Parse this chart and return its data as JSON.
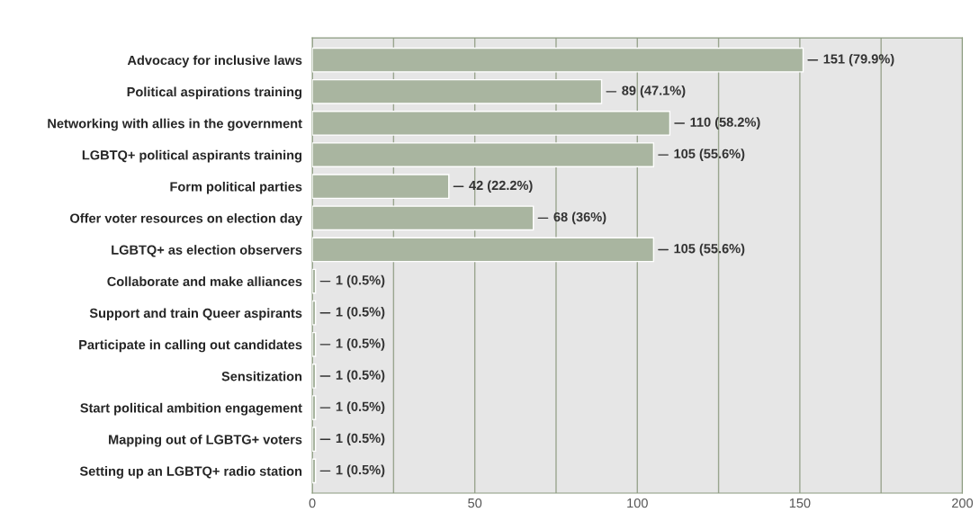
{
  "chart_data": {
    "type": "bar",
    "orientation": "horizontal",
    "categories": [
      "Advocacy for inclusive laws",
      "Political aspirations training",
      "Networking with allies in the government",
      "LGBTQ+ political aspirants training",
      "Form political parties",
      "Offer voter resources on election day",
      "LGBTQ+ as election observers",
      "Collaborate and make alliances",
      "Support and train Queer aspirants",
      "Participate in calling out candidates",
      "Sensitization",
      "Start political ambition engagement",
      "Mapping out of LGBTG+ voters",
      "Setting up an LGBTQ+ radio station"
    ],
    "values": [
      151,
      89,
      110,
      105,
      42,
      68,
      105,
      1,
      1,
      1,
      1,
      1,
      1,
      1
    ],
    "value_labels": [
      "151 (79.9%)",
      "89 (47.1%)",
      "110 (58.2%)",
      "105 (55.6%)",
      "42 (22.2%)",
      "68 (36%)",
      "105 (55.6%)",
      "1 (0.5%)",
      "1 (0.5%)",
      "1 (0.5%)",
      "1 (0.5%)",
      "1 (0.5%)",
      "1 (0.5%)",
      "1 (0.5%)"
    ],
    "color": "#a9b5a0",
    "xlim": [
      0,
      200
    ],
    "xticks": [
      0,
      {
        "value": 25,
        "label": null
      },
      50,
      {
        "value": 75,
        "label": null
      },
      100,
      {
        "value": 125,
        "label": null
      },
      150,
      {
        "value": 175,
        "label": null
      },
      200
    ],
    "grid": "x"
  }
}
